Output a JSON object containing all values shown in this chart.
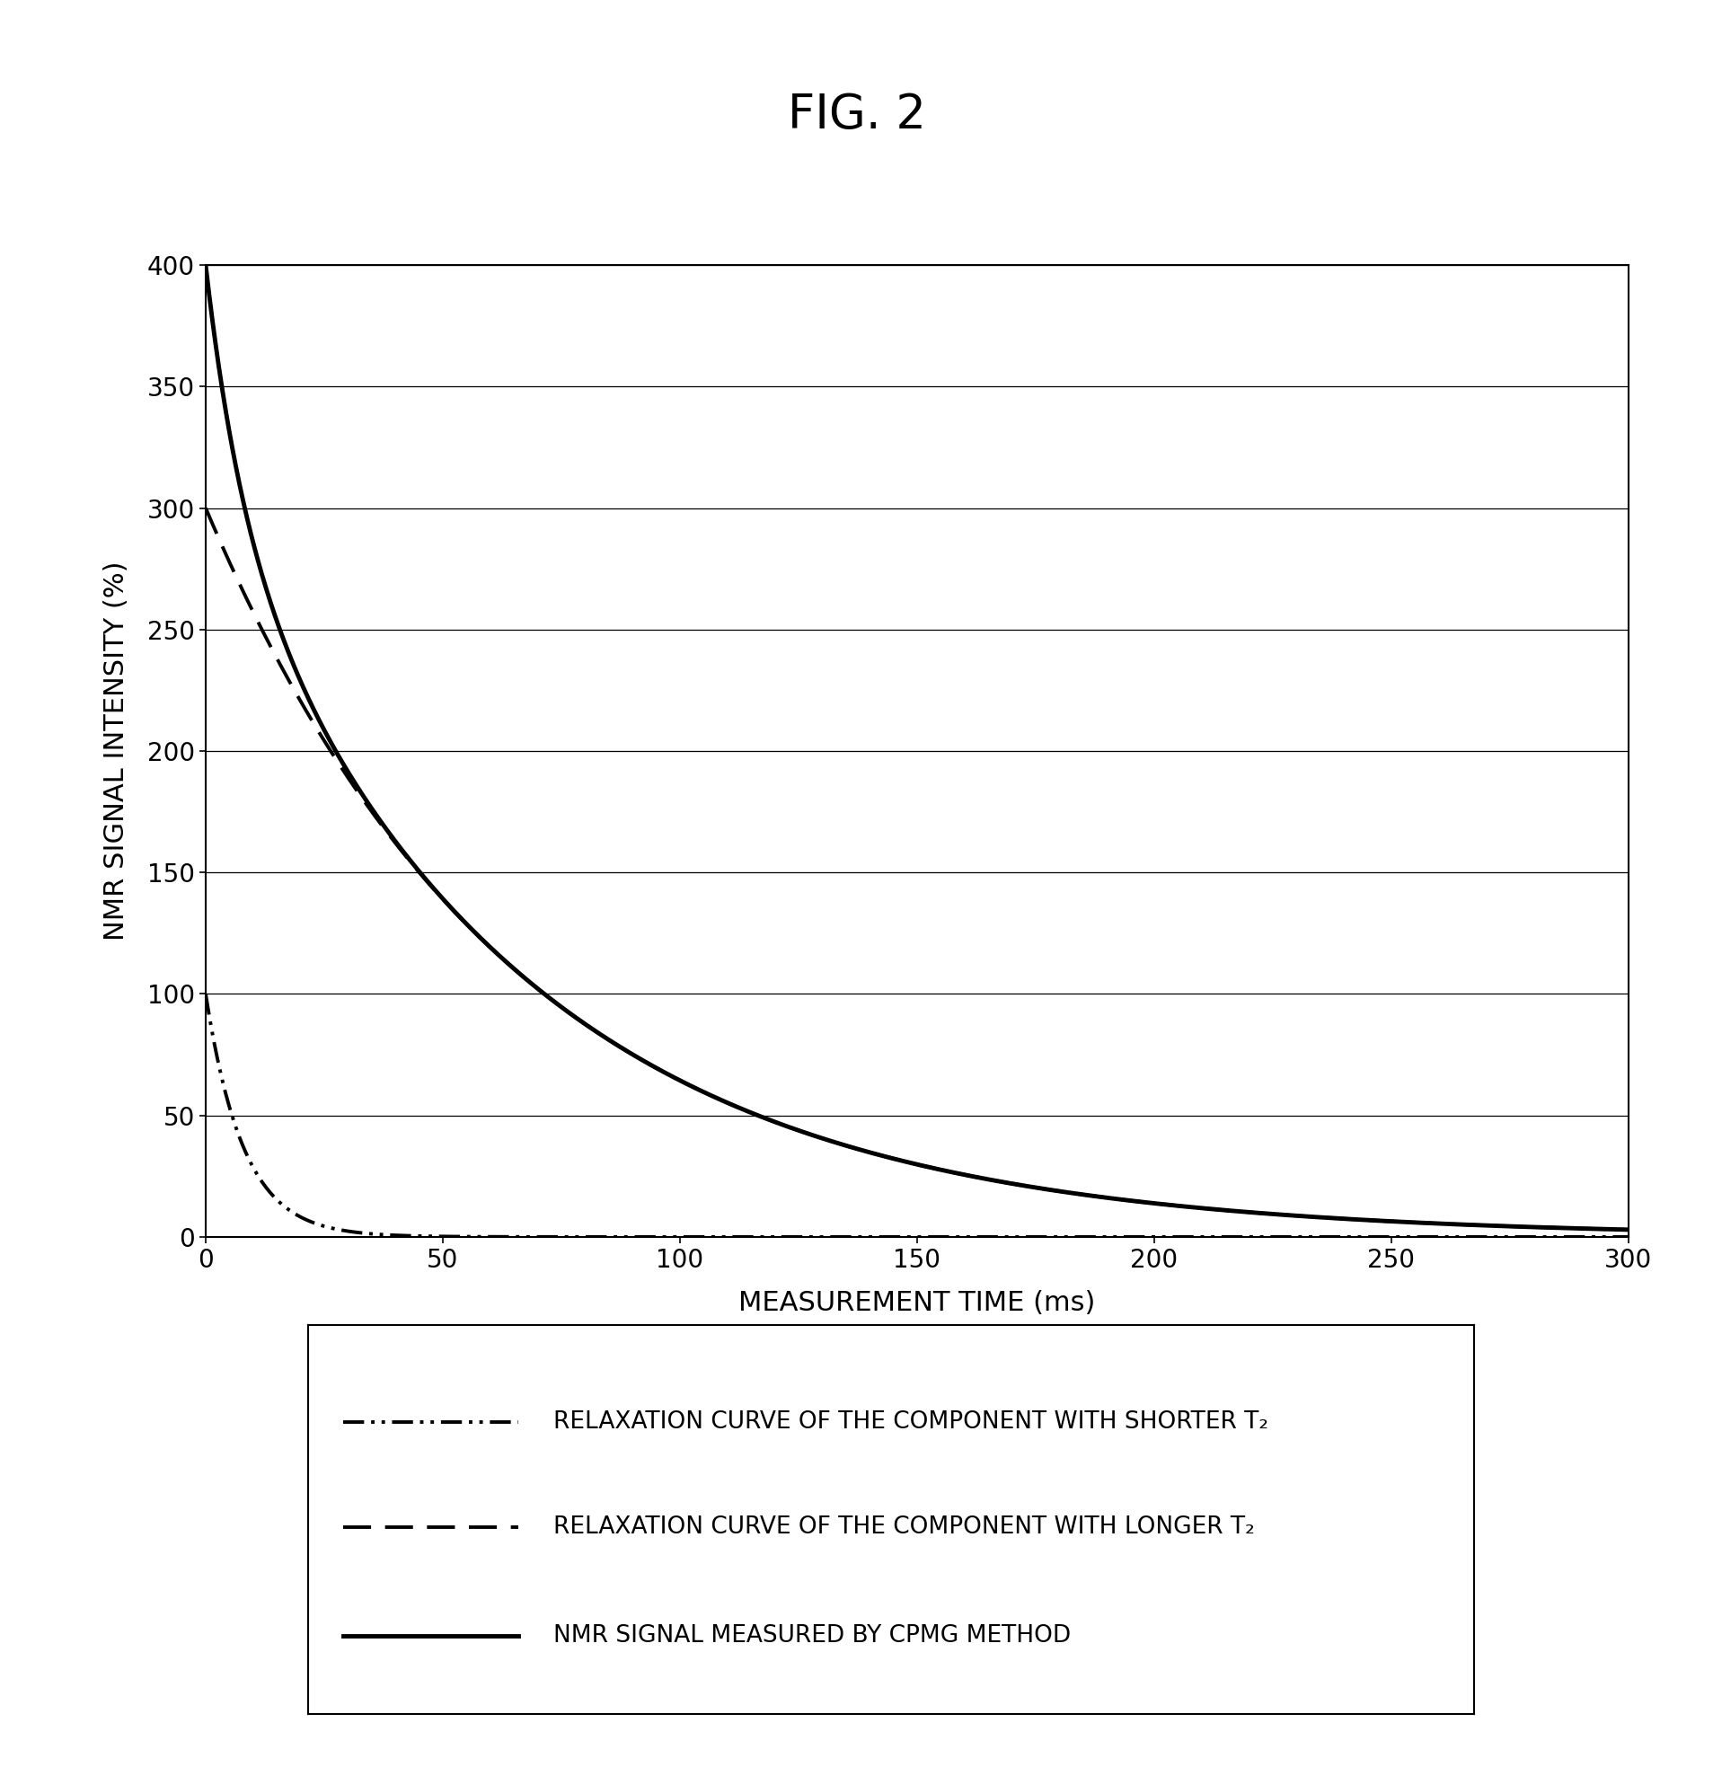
{
  "title": "FIG. 2",
  "xlabel": "MEASUREMENT TIME (ms)",
  "ylabel": "NMR SIGNAL INTENSITY (%)",
  "xlim": [
    0,
    300
  ],
  "ylim": [
    0,
    400
  ],
  "yticks": [
    0,
    50,
    100,
    150,
    200,
    250,
    300,
    350,
    400
  ],
  "xticks": [
    0,
    50,
    100,
    150,
    200,
    250,
    300
  ],
  "shorter_T2_amplitude": 100,
  "shorter_T2_decay": 8,
  "longer_T2_amplitude": 300,
  "longer_T2_decay": 65,
  "line_color": "#000000",
  "background_color": "#ffffff",
  "legend_entries": [
    "RELAXATION CURVE OF THE COMPONENT WITH SHORTER T₂",
    "RELAXATION CURVE OF THE COMPONENT WITH LONGER T₂",
    "NMR SIGNAL MEASURED BY CPMG METHOD"
  ],
  "title_fontsize": 38,
  "axis_label_fontsize": 22,
  "tick_fontsize": 20,
  "legend_fontsize": 19
}
